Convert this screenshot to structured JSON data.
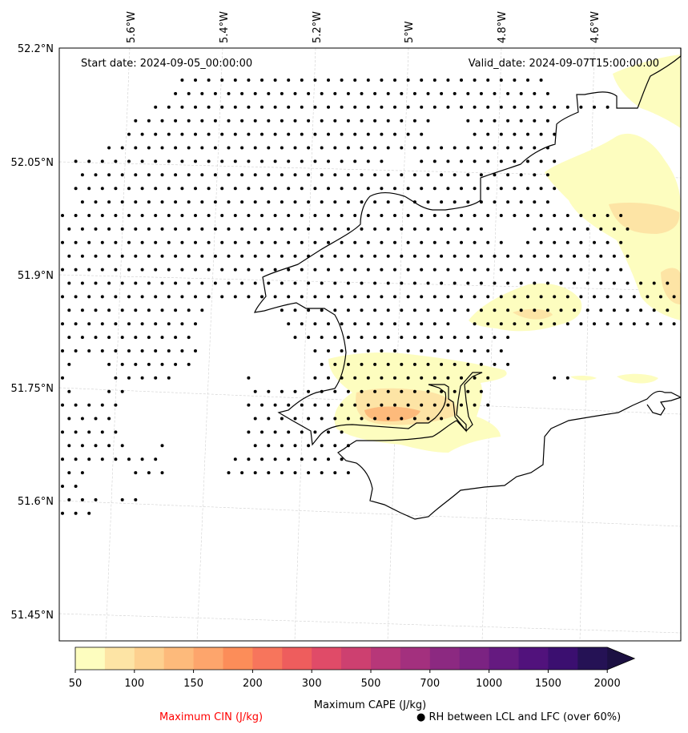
{
  "map": {
    "start_date": "Start date: 2024-09-05_00:00:00",
    "valid_date": "Valid_date: 2024-09-07T15:00:00.00",
    "lon_labels": [
      "5.6°W",
      "5.4°W",
      "5.2°W",
      "5°W",
      "4.8°W",
      "4.6°W"
    ],
    "lat_labels": [
      "52.2°N",
      "52.05°N",
      "51.9°N",
      "51.75°N",
      "51.6°N",
      "51.45°N"
    ]
  },
  "colorbar": {
    "label": "Maximum CAPE (J/kg)",
    "tick_labels": [
      "50",
      "100",
      "150",
      "200",
      "300",
      "500",
      "700",
      "1000",
      "1500",
      "2000"
    ],
    "levels": [
      50,
      75,
      100,
      125,
      150,
      175,
      200,
      250,
      300,
      400,
      500,
      600,
      700,
      850,
      1000,
      1250,
      1500,
      1750,
      2000
    ],
    "colors": [
      "#fdfdbf",
      "#fde4a5",
      "#fdd08f",
      "#fdba7b",
      "#fda56c",
      "#fc8d59",
      "#f7755c",
      "#ee5d5d",
      "#e04b68",
      "#cd4070",
      "#b73779",
      "#a3307e",
      "#8c2981",
      "#7b2382",
      "#651a80",
      "#51127c",
      "#3b0f70",
      "#251255"
    ],
    "extend_color": "#1c1042"
  },
  "legend": {
    "cin_label": "Maximum CIN (J/kg)",
    "cin_color": "#ff0000",
    "rh_label": "● RH between LCL and LFC (over 60%)"
  }
}
